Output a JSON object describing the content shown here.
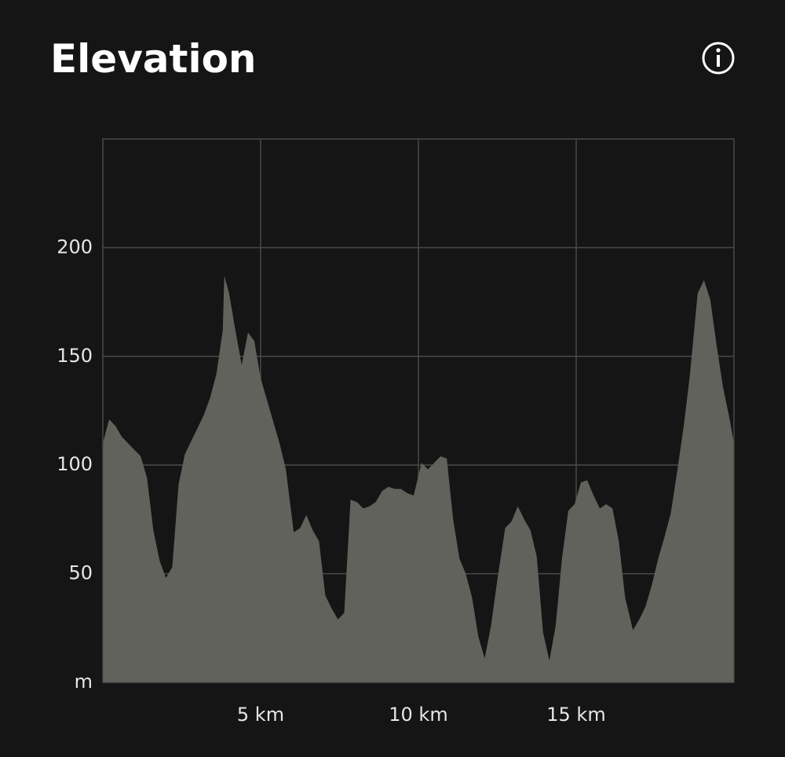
{
  "chart_data": {
    "type": "area",
    "title": "Elevation",
    "x": [
      0,
      0.2,
      0.4,
      0.6,
      0.8,
      1.0,
      1.2,
      1.4,
      1.6,
      1.8,
      2.0,
      2.2,
      2.4,
      2.6,
      2.8,
      3.0,
      3.2,
      3.4,
      3.6,
      3.8,
      3.85,
      4.0,
      4.2,
      4.4,
      4.6,
      4.8,
      5.0,
      5.2,
      5.4,
      5.6,
      5.8,
      6.05,
      6.25,
      6.45,
      6.65,
      6.85,
      7.05,
      7.25,
      7.45,
      7.65,
      7.85,
      8.05,
      8.25,
      8.45,
      8.65,
      8.85,
      9.05,
      9.25,
      9.45,
      9.65,
      9.85,
      10.1,
      10.3,
      10.5,
      10.7,
      10.9,
      11.1,
      11.3,
      11.5,
      11.7,
      11.9,
      12.1,
      12.3,
      12.5,
      12.75,
      12.95,
      13.15,
      13.35,
      13.55,
      13.75,
      13.95,
      14.15,
      14.35,
      14.55,
      14.75,
      14.95,
      15.15,
      15.35,
      15.55,
      15.75,
      15.95,
      16.15,
      16.35,
      16.55,
      16.8,
      17.0,
      17.2,
      17.4,
      17.6,
      17.8,
      18.0,
      18.2,
      18.4,
      18.6,
      18.85,
      19.05,
      19.25,
      19.45,
      19.65,
      19.85,
      20.0
    ],
    "values": [
      110,
      121,
      118,
      113,
      110,
      107,
      104,
      94,
      70,
      56,
      48,
      53,
      91,
      105,
      111,
      117,
      123,
      131,
      142,
      162,
      187,
      179,
      162,
      146,
      161,
      157,
      140,
      130,
      120,
      110,
      98,
      69,
      71,
      77,
      70,
      65,
      40,
      34,
      29,
      32,
      84,
      83,
      80,
      81,
      83,
      88,
      90,
      89,
      89,
      87,
      86,
      101,
      98,
      101,
      104,
      103,
      75,
      57,
      50,
      39,
      21,
      11,
      26,
      47,
      71,
      74,
      81,
      75,
      70,
      58,
      23,
      10,
      26,
      57,
      79,
      82,
      92,
      93,
      86,
      80,
      82,
      80,
      65,
      39,
      24,
      29,
      35,
      45,
      57,
      67,
      78,
      97,
      117,
      141,
      179,
      185,
      176,
      155,
      136,
      122,
      110
    ],
    "color": "#62625d",
    "xlim": [
      0,
      20
    ],
    "xticks": [
      {
        "value": 5,
        "label": "5 km"
      },
      {
        "value": 10,
        "label": "10 km"
      },
      {
        "value": 15,
        "label": "15 km"
      }
    ],
    "ylim": [
      0,
      250
    ],
    "yticks": [
      {
        "value": 0,
        "label": "m"
      },
      50,
      100,
      150,
      200
    ],
    "grid": true
  }
}
